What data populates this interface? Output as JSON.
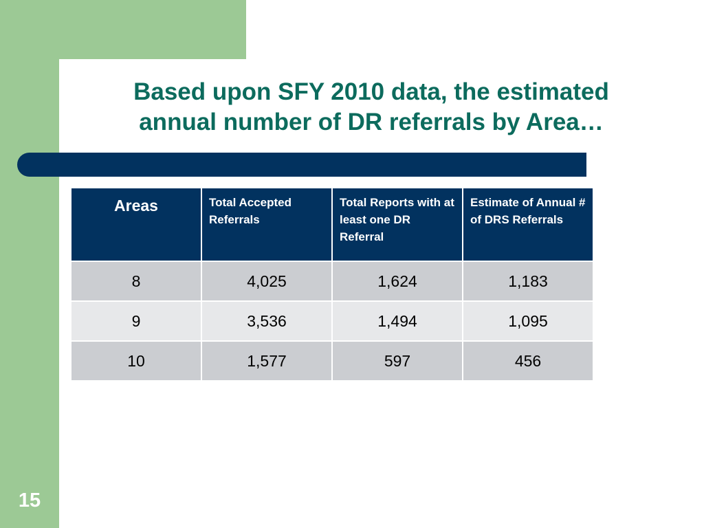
{
  "slide": {
    "title_lines": [
      "Based upon SFY 2010 data, the estimated",
      "annual number of DR referrals by Area…"
    ],
    "page_number": "15"
  },
  "table": {
    "headers": [
      "Areas",
      "Total Accepted Referrals",
      "Total Reports with at least one DR Referral",
      "Estimate of Annual # of DRS Referrals"
    ],
    "rows": [
      [
        "8",
        "4,025",
        "1,624",
        "1,183"
      ],
      [
        "9",
        "3,536",
        "1,494",
        "1,095"
      ],
      [
        "10",
        "1,577",
        "597",
        "456"
      ]
    ]
  },
  "colors": {
    "frame_green": "#9cc995",
    "title_teal": "#0c6b5d",
    "header_navy": "#02325f",
    "row_dark": "#cbcdd1",
    "row_light": "#e7e8ea"
  }
}
